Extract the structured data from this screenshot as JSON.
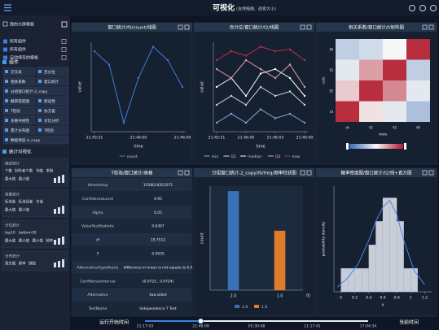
{
  "header": {
    "title": "可视化",
    "subtitle": "(支持拖拽、改变大小)"
  },
  "sidebar": {
    "templates": [
      "我的大屏模板",
      "所有组件",
      "所有组件",
      "自动保存的模板"
    ],
    "components_title": "组件",
    "components": [
      "交叉表",
      "百分位",
      "相关系数",
      "窗口统计",
      "分组窗口统计-2_copy",
      "概率密度图",
      "假设性",
      "T检验",
      "协方差",
      "多重共线性",
      "对比分析",
      "累计分布图",
      "T检验",
      "数据预览-4_copy"
    ],
    "stats_title": "统计可视化",
    "stat_groups": [
      {
        "title": "描述统计",
        "rows": [
          [
            "个数",
            "制作者个数",
            "均值",
            "求和"
          ],
          [
            "最大值",
            "最小值"
          ]
        ]
      },
      {
        "title": "离散统计",
        "rows": [
          [
            "标准差",
            "标准误差",
            "方差"
          ],
          [
            "最大值",
            "最小值"
          ]
        ]
      },
      {
        "title": "分位统计",
        "rows": [
          [
            "top10",
            "bottom10"
          ],
          [
            "最大值",
            "最小值",
            "最小值",
            "频率"
          ]
        ]
      },
      {
        "title": "分布统计",
        "rows": [
          [
            "直方图",
            "频率",
            "饼图"
          ]
        ]
      }
    ]
  },
  "chart_data": [
    {
      "type": "line",
      "title": "窗口统计/f0/count/线图",
      "x_label": "time",
      "y_label": "value",
      "categories": [
        "21:45:51",
        null,
        null,
        "21:46:00",
        null,
        null,
        "21:46:09"
      ],
      "ylim": [
        0,
        10
      ],
      "series": [
        {
          "name": "count",
          "color": "#3d7de0",
          "values": [
            9,
            7.5,
            1,
            6,
            9.5,
            8,
            5
          ]
        }
      ]
    },
    {
      "type": "line",
      "title": "百分位/窗口统计/f2/线图",
      "x_label": "time",
      "y_label": "value",
      "categories": [
        "21:45:51",
        null,
        "21:46:00",
        null,
        "21:46:03",
        null,
        "21:46:09"
      ],
      "ylim": [
        0,
        10
      ],
      "series": [
        {
          "name": "min",
          "color": "#8fa8d8",
          "values": [
            1,
            2,
            1,
            2.5,
            1.5,
            2,
            1
          ]
        },
        {
          "name": "Q1",
          "color": "#d0d4dc",
          "values": [
            3,
            4,
            3,
            5,
            4,
            4.5,
            3
          ]
        },
        {
          "name": "median",
          "color": "#ffffff",
          "values": [
            5,
            6,
            4,
            6.5,
            7,
            6,
            4
          ]
        },
        {
          "name": "Q3",
          "color": "#e8a0b0",
          "values": [
            7,
            6,
            8,
            7,
            6,
            7.5,
            5
          ]
        },
        {
          "name": "max",
          "color": "#c0304a",
          "values": [
            8,
            9,
            8.5,
            9.5,
            9,
            9.2,
            8
          ]
        }
      ]
    },
    {
      "type": "heatmap",
      "title": "相关系数/窗口统计/f/矩阵图",
      "x_label": "rows",
      "y_label": "cols",
      "x_categories": [
        "id",
        "f2",
        "f3",
        "f4"
      ],
      "y_categories": [
        "f4",
        "f3",
        "f2",
        "id"
      ],
      "values": [
        [
          -0.3,
          -0.2,
          0.0,
          0.9
        ],
        [
          -0.1,
          0.4,
          0.9,
          -0.3
        ],
        [
          0.2,
          0.9,
          0.5,
          -0.1
        ],
        [
          0.9,
          0.1,
          -0.1,
          -0.4
        ]
      ],
      "zlim": [
        -1,
        1
      ],
      "colors": [
        "#3b6db5",
        "#f7f7f7",
        "#b2182b"
      ]
    },
    {
      "type": "bar",
      "title": "分组窗口统计-2_copy/f0/freq/频率柱状图",
      "x_label": "f0",
      "y_label": "count",
      "categories": [
        "2.0",
        "1.0"
      ],
      "values": [
        10,
        6
      ],
      "colors": [
        "#3b6fb6",
        "#e07b2a"
      ],
      "ylim": [
        0,
        10.5
      ]
    },
    {
      "type": "histogram",
      "title": "概率密度图/窗口统计/f2/线+直方图",
      "x_label": "x",
      "y_label": "probability density",
      "bins": [
        0,
        0.1,
        0.2,
        0.3,
        0.4,
        0.5,
        0.6,
        0.7,
        0.8,
        0.9,
        1.0,
        1.1
      ],
      "values": [
        1,
        1,
        1,
        1,
        2,
        3,
        4,
        4,
        3,
        1,
        1
      ],
      "color": "#e6ebf3",
      "xlim": [
        -0.1,
        1.3
      ],
      "xticks": [
        0,
        0.2,
        0.4,
        0.6,
        0.8,
        1,
        1.2
      ],
      "ylim": [
        0,
        4.5
      ],
      "curve": {
        "x": [
          -0.05,
          0.1,
          0.25,
          0.4,
          0.5,
          0.6,
          0.7,
          0.8,
          0.9,
          1.05,
          1.2
        ],
        "values": [
          0.2,
          0.6,
          1.2,
          2.2,
          3.0,
          3.6,
          3.9,
          3.3,
          2.2,
          0.9,
          0.3
        ],
        "color": "#4a86e8"
      }
    }
  ],
  "table": {
    "title": "T检验/窗口统计/表格",
    "rows": [
      [
        "timestamp",
        "1558014351071"
      ],
      [
        "ConfidenceLevel",
        "0.95"
      ],
      [
        "Alpha",
        "0.05"
      ],
      [
        "ValueTestStatistic",
        "0.6367"
      ],
      [
        "df",
        "19.7512"
      ],
      [
        "P",
        "0.0935"
      ],
      [
        "AlternativeHypothesis",
        "difference in mean is not equals to 0.0"
      ],
      [
        "ConfidenceInterval",
        "(0.0722 , 0.0724)"
      ],
      [
        "Alternative",
        "two.sided"
      ],
      [
        "TestName",
        "Independence T Test"
      ]
    ]
  },
  "timeline": {
    "start_label": "运行开始时间",
    "ticks": [
      "21:17:03",
      "21:46:09",
      "05:30:48",
      "11:17:41",
      "17:04:34"
    ],
    "end_label": "当前时间"
  }
}
